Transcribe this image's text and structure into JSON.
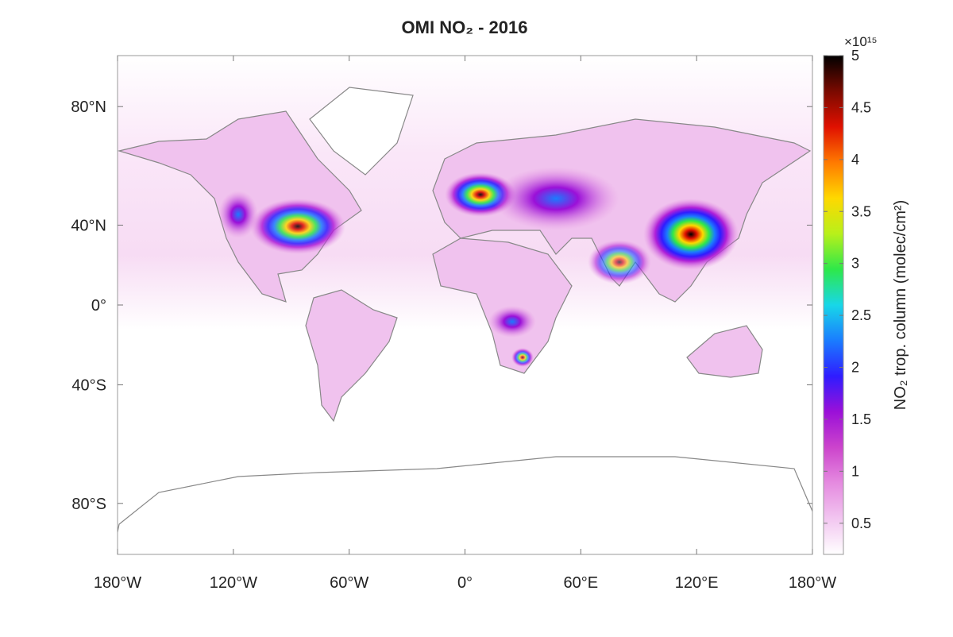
{
  "chart_data": {
    "type": "map",
    "projection": "miller",
    "title": "OMI NO₂ - 2016",
    "xlim": [
      -180,
      180
    ],
    "xticks": [
      {
        "value": -180,
        "label": "180°W"
      },
      {
        "value": -120,
        "label": "120°W"
      },
      {
        "value": -60,
        "label": "60°W"
      },
      {
        "value": 0,
        "label": "0°"
      },
      {
        "value": 60,
        "label": "60°E"
      },
      {
        "value": 120,
        "label": "120°E"
      },
      {
        "value": 180,
        "label": "180°W"
      }
    ],
    "ylim": [
      -90,
      90
    ],
    "yticks": [
      {
        "value": 80,
        "label": "80°N"
      },
      {
        "value": 40,
        "label": "40°N"
      },
      {
        "value": 0,
        "label": "0°"
      },
      {
        "value": -40,
        "label": "40°S"
      },
      {
        "value": -80,
        "label": "80°S"
      }
    ],
    "colorbar": {
      "label": "NO₂ trop. column (molec/cm²)",
      "multiplier": "×10¹⁵",
      "clim": [
        0.2,
        5
      ],
      "ticks": [
        0.5,
        1,
        1.5,
        2,
        2.5,
        3,
        3.5,
        4,
        4.5,
        5
      ],
      "colors": [
        "#ffffff",
        "#f2c6f0",
        "#e58be0",
        "#cc44cc",
        "#9b10d8",
        "#2f1cff",
        "#1a7cff",
        "#18d7e8",
        "#2ee84a",
        "#b8f01a",
        "#ffd800",
        "#ff7a00",
        "#e01000",
        "#7a0a00",
        "#000000"
      ]
    }
  }
}
